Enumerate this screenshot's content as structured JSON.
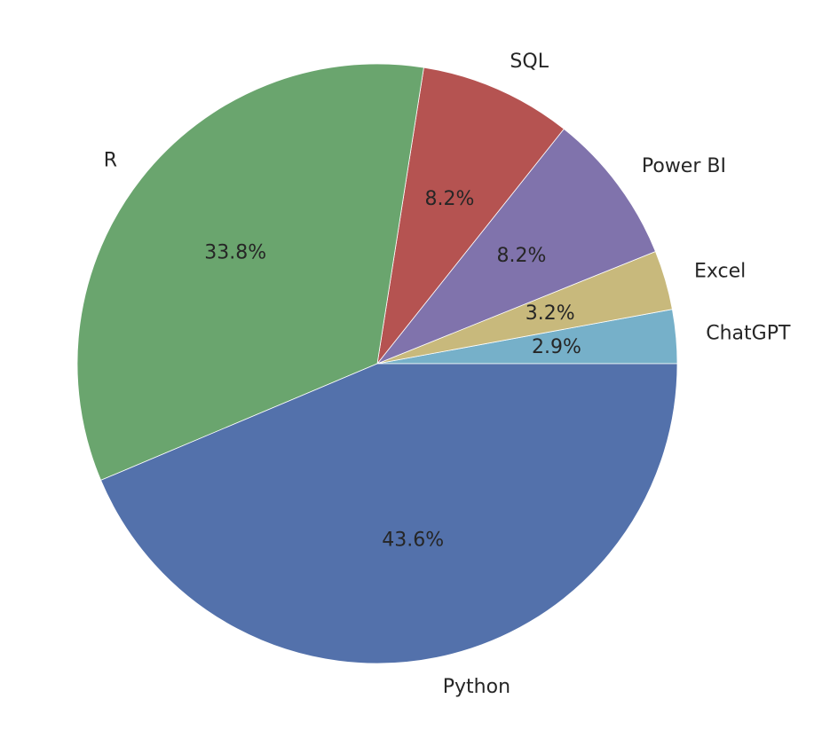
{
  "chart_data": {
    "type": "pie",
    "title": "",
    "labels": [
      "ChatGPT",
      "Excel",
      "Power BI",
      "SQL",
      "R",
      "Python"
    ],
    "values": [
      2.9,
      3.2,
      8.2,
      8.2,
      33.8,
      43.6
    ],
    "value_labels": [
      "2.9%",
      "3.2%",
      "8.2%",
      "8.2%",
      "33.8%",
      "43.6%"
    ],
    "colors": [
      "#76b0c9",
      "#c8b97c",
      "#8073ac",
      "#b55351",
      "#6aa56e",
      "#5371ab"
    ],
    "start_angle_deg": 0,
    "direction": "counterclockwise",
    "legend": "none"
  }
}
